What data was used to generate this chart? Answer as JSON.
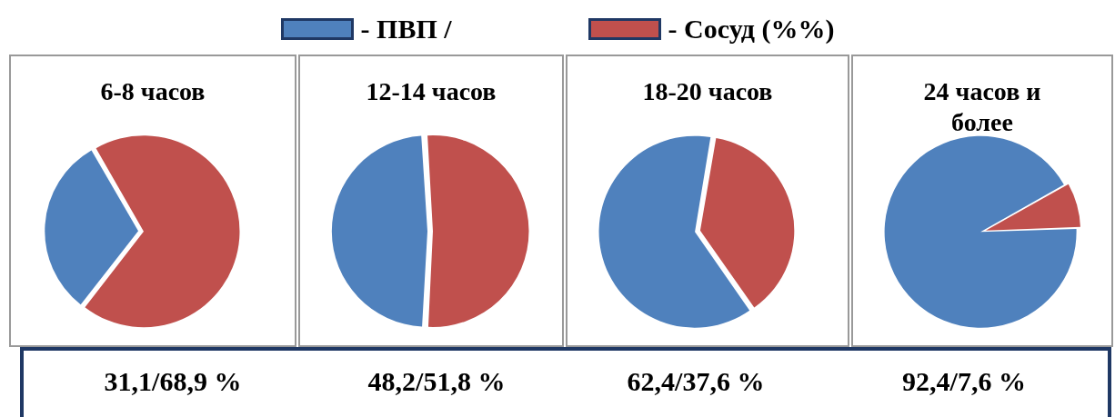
{
  "chart_data": [
    {
      "type": "pie",
      "title": "6-8 часов",
      "categories": [
        "- ПВП /",
        "- Сосуд (%%)"
      ],
      "values": [
        31.1,
        68.9
      ],
      "colors": [
        "#4f81bd",
        "#c0504d"
      ],
      "legend": "top",
      "annotations": [
        "31,1/68,9 %"
      ]
    },
    {
      "type": "pie",
      "title": "12-14 часов",
      "categories": [
        null,
        null
      ],
      "values": [
        48.2,
        51.8
      ],
      "colors": [
        "#4f81bd",
        "#c0504d"
      ],
      "annotations": [
        "48,2/51,8 %"
      ]
    },
    {
      "type": "pie",
      "title": "18-20 часов",
      "categories": [
        null,
        null
      ],
      "values": [
        62.4,
        37.6
      ],
      "colors": [
        "#4f81bd",
        "#c0504d"
      ],
      "annotations": [
        "62,4/37,6 %"
      ]
    },
    {
      "type": "pie",
      "title": "24 часов и более",
      "categories": [
        null,
        null
      ],
      "values": [
        92.4,
        7.6
      ],
      "colors": [
        "#4f81bd",
        "#c0504d"
      ],
      "annotations": [
        "92,4/7,6 %"
      ]
    }
  ]
}
